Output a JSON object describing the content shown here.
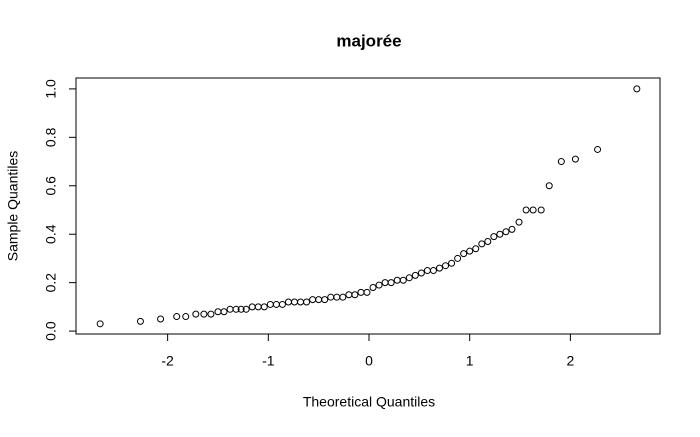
{
  "chart_data": {
    "type": "scatter",
    "title": "majorée",
    "x_label": "Theoretical Quantiles",
    "y_label": "Sample Quantiles",
    "x": [
      -2.67,
      -2.27,
      -2.07,
      -1.91,
      -1.82,
      -1.72,
      -1.64,
      -1.57,
      -1.5,
      -1.44,
      -1.38,
      -1.32,
      -1.27,
      -1.22,
      -1.16,
      -1.1,
      -1.04,
      -0.98,
      -0.92,
      -0.86,
      -0.8,
      -0.74,
      -0.68,
      -0.62,
      -0.56,
      -0.5,
      -0.44,
      -0.38,
      -0.32,
      -0.26,
      -0.2,
      -0.14,
      -0.08,
      -0.02,
      0.04,
      0.1,
      0.16,
      0.22,
      0.28,
      0.34,
      0.4,
      0.46,
      0.52,
      0.58,
      0.64,
      0.7,
      0.76,
      0.82,
      0.88,
      0.94,
      1.0,
      1.06,
      1.12,
      1.18,
      1.24,
      1.3,
      1.36,
      1.42,
      1.49,
      1.56,
      1.63,
      1.71,
      1.79,
      1.91,
      2.05,
      2.27,
      2.66
    ],
    "values": [
      0.03,
      0.04,
      0.05,
      0.06,
      0.06,
      0.07,
      0.07,
      0.07,
      0.08,
      0.08,
      0.09,
      0.09,
      0.09,
      0.09,
      0.1,
      0.1,
      0.1,
      0.11,
      0.11,
      0.11,
      0.12,
      0.12,
      0.12,
      0.12,
      0.13,
      0.13,
      0.13,
      0.14,
      0.14,
      0.14,
      0.15,
      0.15,
      0.16,
      0.16,
      0.18,
      0.19,
      0.2,
      0.2,
      0.21,
      0.21,
      0.22,
      0.23,
      0.24,
      0.25,
      0.25,
      0.26,
      0.27,
      0.28,
      0.3,
      0.32,
      0.33,
      0.34,
      0.36,
      0.37,
      0.39,
      0.4,
      0.41,
      0.42,
      0.45,
      0.5,
      0.5,
      0.5,
      0.6,
      0.7,
      0.71,
      0.75,
      1.0
    ],
    "color": "#000000",
    "xlim": [
      -2.91,
      2.89
    ],
    "ylim": [
      -0.012,
      1.045
    ],
    "xticks": [
      -2,
      -1,
      0,
      1,
      2
    ],
    "yticks": [
      {
        "value": 0,
        "label": "0.0"
      },
      0.2,
      0.4,
      0.6,
      0.8,
      {
        "value": 1,
        "label": "1.0"
      }
    ]
  }
}
